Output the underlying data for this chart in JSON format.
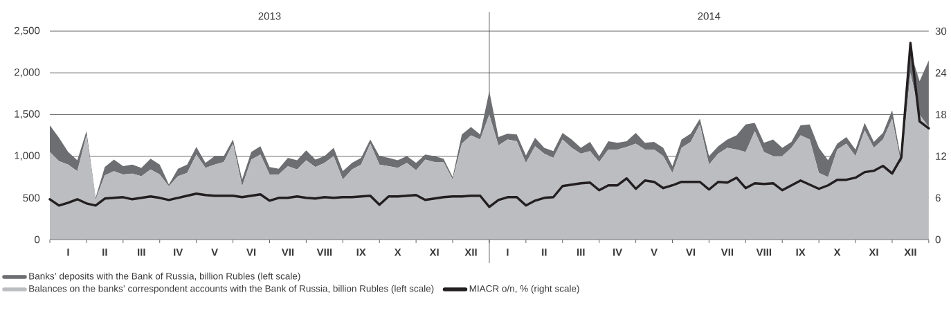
{
  "chart_data": {
    "type": "area",
    "stacked": true,
    "categories": [
      null,
      null,
      "I",
      null,
      null,
      null,
      "II",
      null,
      null,
      null,
      "III",
      null,
      null,
      null,
      "IV",
      null,
      null,
      null,
      "V",
      null,
      null,
      null,
      "VI",
      null,
      null,
      null,
      "VII",
      null,
      null,
      null,
      "VIII",
      null,
      null,
      null,
      "IX",
      null,
      null,
      null,
      "X",
      null,
      null,
      null,
      "XI",
      null,
      null,
      null,
      "XII",
      null,
      null,
      null,
      "I",
      null,
      null,
      null,
      "II",
      null,
      null,
      null,
      "III",
      null,
      null,
      null,
      "IV",
      null,
      null,
      null,
      "V",
      null,
      null,
      null,
      "VI",
      null,
      null,
      null,
      "VII",
      null,
      null,
      null,
      "VIII",
      null,
      null,
      null,
      "IX",
      null,
      null,
      null,
      "X",
      null,
      null,
      null,
      "XI",
      null,
      null,
      null,
      "XII",
      null,
      null
    ],
    "ylim": [
      0,
      2500
    ],
    "yticks": [
      0,
      {
        "value": 500,
        "label": "500"
      },
      {
        "value": 1000,
        "label": "1,000"
      },
      {
        "value": 1500,
        "label": "1,500"
      },
      {
        "value": 2000,
        "label": "2,000"
      },
      {
        "value": 2500,
        "label": "2,500"
      }
    ],
    "y2lim": [
      0,
      30
    ],
    "y2ticks": [
      0,
      6,
      12,
      18,
      24,
      30
    ],
    "grid": "y",
    "legend": "bottom",
    "annotations": [
      "2013",
      "2014"
    ],
    "series": [
      {
        "name": "Balances on the banks’ correspondent accounts with the Bank of Russia, billion Rubles (left scale)",
        "color": "#bcbdc0",
        "values": [
          1050,
          940,
          900,
          820,
          1250,
          480,
          770,
          820,
          780,
          790,
          760,
          840,
          780,
          640,
          760,
          800,
          1020,
          860,
          900,
          930,
          1150,
          640,
          960,
          1020,
          780,
          780,
          880,
          840,
          950,
          870,
          920,
          1000,
          720,
          840,
          900,
          1150,
          900,
          880,
          860,
          920,
          830,
          960,
          930,
          930,
          720,
          1150,
          1250,
          1200,
          1500,
          1130,
          1200,
          1180,
          920,
          1120,
          1030,
          980,
          1200,
          1100,
          1030,
          1060,
          930,
          1080,
          1080,
          1110,
          1150,
          1080,
          1080,
          1000,
          800,
          1100,
          1170,
          1380,
          900,
          1030,
          1100,
          1080,
          1050,
          1300,
          1050,
          1000,
          1000,
          1100,
          1250,
          1200,
          800,
          750,
          1080,
          1150,
          1000,
          1310,
          1100,
          1200,
          1450,
          900,
          2000,
          1500,
          1350
        ]
      },
      {
        "name": "Banks’ deposits with the Bank of Russia, billion Rubles (left scale)",
        "color": "#6d6e71",
        "values": [
          320,
          280,
          150,
          130,
          50,
          20,
          100,
          140,
          100,
          110,
          100,
          130,
          120,
          20,
          90,
          100,
          90,
          60,
          100,
          70,
          50,
          80,
          90,
          100,
          90,
          70,
          100,
          110,
          120,
          90,
          80,
          100,
          100,
          80,
          80,
          50,
          100,
          100,
          90,
          80,
          90,
          60,
          70,
          40,
          30,
          110,
          100,
          60,
          280,
          100,
          70,
          80,
          90,
          100,
          70,
          80,
          80,
          100,
          70,
          110,
          70,
          100,
          80,
          70,
          130,
          80,
          90,
          100,
          80,
          100,
          100,
          70,
          100,
          90,
          100,
          170,
          330,
          100,
          110,
          200,
          100,
          70,
          120,
          180,
          300,
          200,
          70,
          80,
          80,
          90,
          70,
          80,
          100,
          50,
          250,
          400,
          800
        ]
      },
      {
        "name": "MIACR o/n, % (right scale)",
        "type": "line",
        "axis": "y2",
        "color": "#231f20",
        "values": [
          5.8,
          4.9,
          5.3,
          5.8,
          5.2,
          4.9,
          5.9,
          6.0,
          6.1,
          5.8,
          6.0,
          6.2,
          6.0,
          5.7,
          6.0,
          6.3,
          6.6,
          6.4,
          6.3,
          6.3,
          6.3,
          6.1,
          6.3,
          6.5,
          5.6,
          6.0,
          6.0,
          6.2,
          6.0,
          5.9,
          6.1,
          6.0,
          6.1,
          6.1,
          6.2,
          6.3,
          5.0,
          6.2,
          6.2,
          6.3,
          6.4,
          5.7,
          5.9,
          6.1,
          6.2,
          6.2,
          6.3,
          6.3,
          4.7,
          5.7,
          6.1,
          6.1,
          4.9,
          5.6,
          6.0,
          6.1,
          7.7,
          7.9,
          8.1,
          8.2,
          7.1,
          7.8,
          7.8,
          8.8,
          7.3,
          8.5,
          8.3,
          7.4,
          7.8,
          8.3,
          8.3,
          8.3,
          7.2,
          8.3,
          8.2,
          8.9,
          7.4,
          8.1,
          8.0,
          8.1,
          7.1,
          7.8,
          8.5,
          7.9,
          7.3,
          7.8,
          8.6,
          8.6,
          8.9,
          9.7,
          9.9,
          10.6,
          9.5,
          11.8,
          28.3,
          17.0,
          16.0
        ]
      }
    ]
  }
}
